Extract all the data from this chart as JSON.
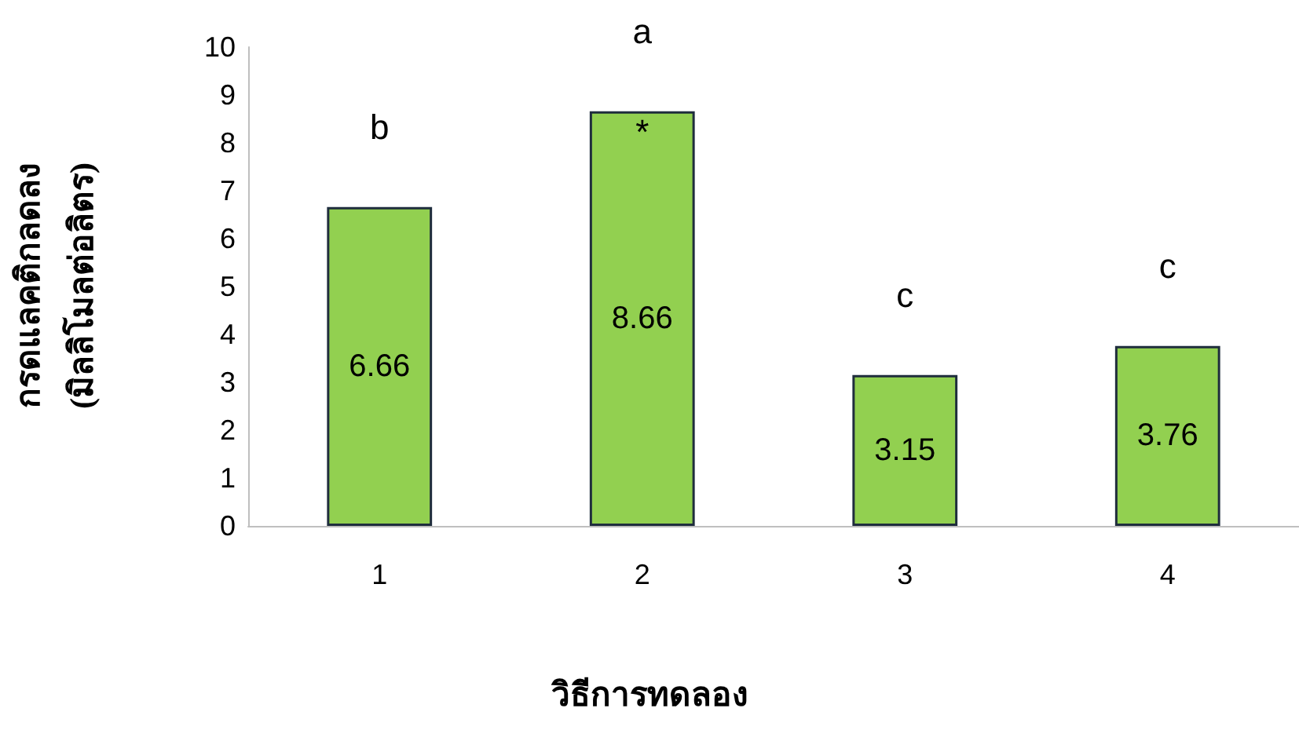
{
  "chart_data": {
    "type": "bar",
    "categories": [
      "1",
      "2",
      "3",
      "4"
    ],
    "values": [
      6.66,
      8.66,
      3.15,
      3.76
    ],
    "color": "#92d050",
    "xlabel": "วิธีการทดลอง",
    "ylabel": "กรดแลคติกลดลง\n(มิลลิโมลต่อลิตร)",
    "ylim": [
      0,
      10
    ],
    "yticks": [
      0,
      1,
      2,
      3,
      4,
      5,
      6,
      7,
      8,
      9,
      10
    ],
    "grid": false,
    "data_labels": true,
    "annotations": [
      {
        "text": "b",
        "x": "1",
        "y": 6.66
      },
      {
        "text": "a",
        "x": "2",
        "y": 8.66
      },
      {
        "text": "*",
        "x": "2",
        "y": 8.66
      },
      {
        "text": "c",
        "x": "3",
        "y": 3.15
      },
      {
        "text": "c",
        "x": "4",
        "y": 3.76
      }
    ]
  }
}
